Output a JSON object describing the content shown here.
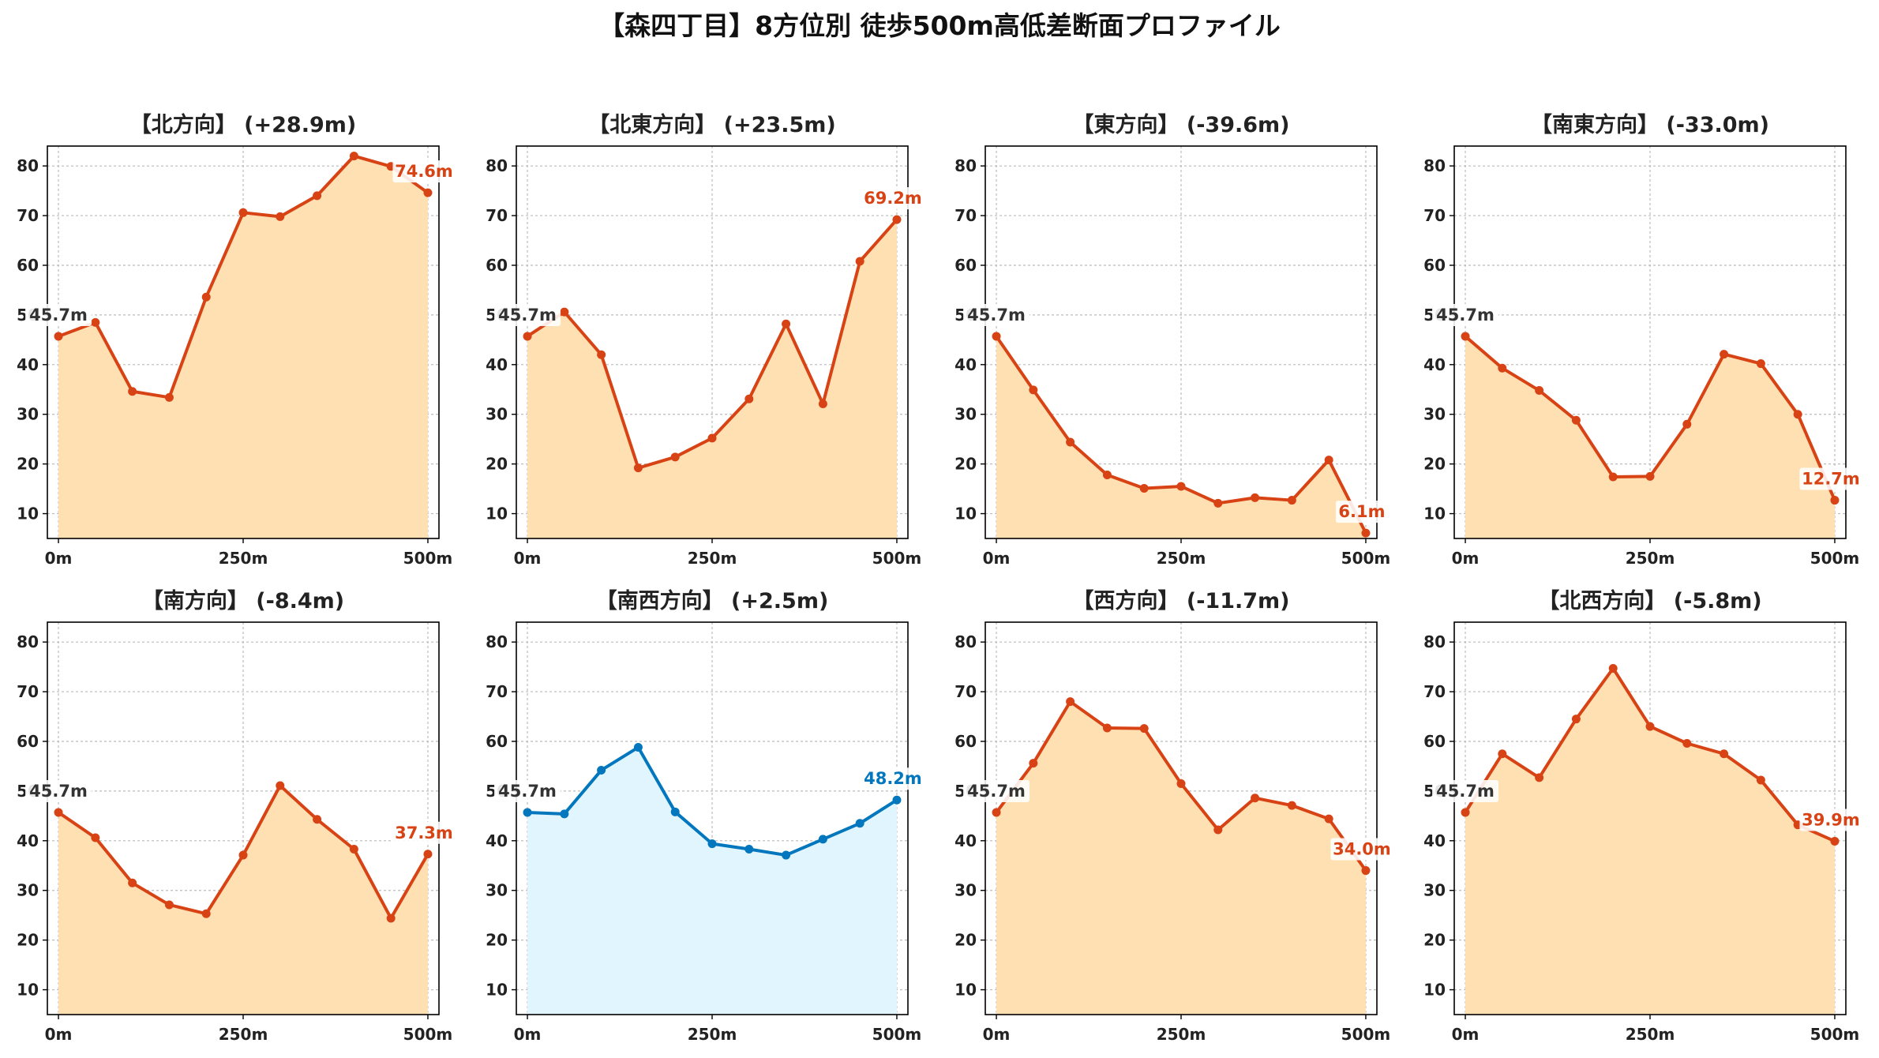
{
  "title": "【森四丁目】8方位別 徒歩500m高低差断面プロファイル",
  "colors": {
    "rise": "#d84315",
    "rise_fill": "#ffe0b2",
    "level": "#0277bd",
    "level_fill": "#e1f5fe",
    "start_label": "#333333",
    "grid": "#bbbbbb",
    "axis": "#000000"
  },
  "chart_data": [
    {
      "type": "area",
      "title": "【北方向】 (+28.9m)",
      "style": "orange",
      "x": [
        0,
        50,
        100,
        150,
        200,
        250,
        300,
        350,
        400,
        450,
        500
      ],
      "y": [
        45.7,
        48.5,
        34.6,
        33.4,
        53.6,
        70.6,
        69.8,
        74.0,
        82.0,
        79.9,
        74.6
      ],
      "start_label": "45.7m",
      "end_label": "74.6m",
      "ylim": [
        5,
        84
      ],
      "xlim": [
        -15,
        515
      ],
      "yticks": [
        10,
        20,
        30,
        40,
        50,
        60,
        70,
        80
      ],
      "xticks": [
        0,
        250,
        500
      ],
      "xticklabels": [
        "0m",
        "250m",
        "500m"
      ],
      "grid": true
    },
    {
      "type": "area",
      "title": "【北東方向】 (+23.5m)",
      "style": "orange",
      "x": [
        0,
        50,
        100,
        150,
        200,
        250,
        300,
        350,
        400,
        450,
        500
      ],
      "y": [
        45.7,
        50.6,
        42.0,
        19.2,
        21.4,
        25.2,
        33.1,
        48.2,
        32.1,
        60.8,
        69.2
      ],
      "start_label": "45.7m",
      "end_label": "69.2m",
      "ylim": [
        5,
        84
      ],
      "xlim": [
        -15,
        515
      ],
      "yticks": [
        10,
        20,
        30,
        40,
        50,
        60,
        70,
        80
      ],
      "xticks": [
        0,
        250,
        500
      ],
      "xticklabels": [
        "0m",
        "250m",
        "500m"
      ],
      "grid": true
    },
    {
      "type": "area",
      "title": "【東方向】 (-39.6m)",
      "style": "orange",
      "x": [
        0,
        50,
        100,
        150,
        200,
        250,
        300,
        350,
        400,
        450,
        500
      ],
      "y": [
        45.7,
        34.9,
        24.4,
        17.8,
        15.1,
        15.5,
        12.1,
        13.2,
        12.7,
        20.8,
        6.1
      ],
      "start_label": "45.7m",
      "end_label": "6.1m",
      "ylim": [
        5,
        84
      ],
      "xlim": [
        -15,
        515
      ],
      "yticks": [
        10,
        20,
        30,
        40,
        50,
        60,
        70,
        80
      ],
      "xticks": [
        0,
        250,
        500
      ],
      "xticklabels": [
        "0m",
        "250m",
        "500m"
      ],
      "grid": true
    },
    {
      "type": "area",
      "title": "【南東方向】 (-33.0m)",
      "style": "orange",
      "x": [
        0,
        50,
        100,
        150,
        200,
        250,
        300,
        350,
        400,
        450,
        500
      ],
      "y": [
        45.7,
        39.3,
        34.8,
        28.8,
        17.4,
        17.5,
        28.0,
        42.1,
        40.2,
        30.0,
        12.7
      ],
      "start_label": "45.7m",
      "end_label": "12.7m",
      "ylim": [
        5,
        84
      ],
      "xlim": [
        -15,
        515
      ],
      "yticks": [
        10,
        20,
        30,
        40,
        50,
        60,
        70,
        80
      ],
      "xticks": [
        0,
        250,
        500
      ],
      "xticklabels": [
        "0m",
        "250m",
        "500m"
      ],
      "grid": true
    },
    {
      "type": "area",
      "title": "【南方向】 (-8.4m)",
      "style": "orange",
      "x": [
        0,
        50,
        100,
        150,
        200,
        250,
        300,
        350,
        400,
        450,
        500
      ],
      "y": [
        45.7,
        40.6,
        31.5,
        27.1,
        25.3,
        37.1,
        51.1,
        44.3,
        38.3,
        24.4,
        37.3
      ],
      "start_label": "45.7m",
      "end_label": "37.3m",
      "ylim": [
        5,
        84
      ],
      "xlim": [
        -15,
        515
      ],
      "yticks": [
        10,
        20,
        30,
        40,
        50,
        60,
        70,
        80
      ],
      "xticks": [
        0,
        250,
        500
      ],
      "xticklabels": [
        "0m",
        "250m",
        "500m"
      ],
      "grid": true
    },
    {
      "type": "area",
      "title": "【南西方向】 (+2.5m)",
      "style": "blue",
      "x": [
        0,
        50,
        100,
        150,
        200,
        250,
        300,
        350,
        400,
        450,
        500
      ],
      "y": [
        45.7,
        45.4,
        54.2,
        58.8,
        45.8,
        39.4,
        38.3,
        37.1,
        40.3,
        43.5,
        48.2
      ],
      "start_label": "45.7m",
      "end_label": "48.2m",
      "ylim": [
        5,
        84
      ],
      "xlim": [
        -15,
        515
      ],
      "yticks": [
        10,
        20,
        30,
        40,
        50,
        60,
        70,
        80
      ],
      "xticks": [
        0,
        250,
        500
      ],
      "xticklabels": [
        "0m",
        "250m",
        "500m"
      ],
      "grid": true
    },
    {
      "type": "area",
      "title": "【西方向】 (-11.7m)",
      "style": "orange",
      "x": [
        0,
        50,
        100,
        150,
        200,
        250,
        300,
        350,
        400,
        450,
        500
      ],
      "y": [
        45.7,
        55.6,
        68.0,
        62.7,
        62.6,
        51.5,
        42.2,
        48.6,
        47.1,
        44.4,
        34.0
      ],
      "start_label": "45.7m",
      "end_label": "34.0m",
      "ylim": [
        5,
        84
      ],
      "xlim": [
        -15,
        515
      ],
      "yticks": [
        10,
        20,
        30,
        40,
        50,
        60,
        70,
        80
      ],
      "xticks": [
        0,
        250,
        500
      ],
      "xticklabels": [
        "0m",
        "250m",
        "500m"
      ],
      "grid": true
    },
    {
      "type": "area",
      "title": "【北西方向】 (-5.8m)",
      "style": "orange",
      "x": [
        0,
        50,
        100,
        150,
        200,
        250,
        300,
        350,
        400,
        450,
        500
      ],
      "y": [
        45.7,
        57.5,
        52.7,
        64.5,
        74.7,
        63.0,
        59.6,
        57.5,
        52.2,
        43.2,
        39.9
      ],
      "start_label": "45.7m",
      "end_label": "39.9m",
      "ylim": [
        5,
        84
      ],
      "xlim": [
        -15,
        515
      ],
      "yticks": [
        10,
        20,
        30,
        40,
        50,
        60,
        70,
        80
      ],
      "xticks": [
        0,
        250,
        500
      ],
      "xticklabels": [
        "0m",
        "250m",
        "500m"
      ],
      "grid": true
    }
  ]
}
